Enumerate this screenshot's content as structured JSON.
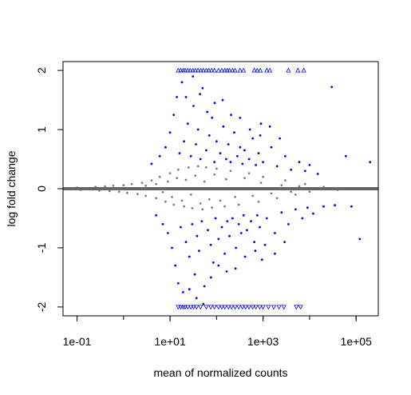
{
  "chart_data": {
    "type": "scatter",
    "title": "",
    "xlabel": "mean of normalized counts",
    "ylabel": "log fold change",
    "x_scale": "log10",
    "xlim": [
      0.05,
      300000
    ],
    "ylim": [
      -2.15,
      2.15
    ],
    "x_ticks": [
      0.1,
      10,
      1000,
      100000
    ],
    "x_tick_labels": [
      "1e-01",
      "1e+01",
      "1e+03",
      "1e+05"
    ],
    "y_ticks": [
      -2,
      -1,
      0,
      1,
      2
    ],
    "y_tick_labels": [
      "-2",
      "-1",
      "0",
      "1",
      "2"
    ],
    "grid": false,
    "legend": "none",
    "reference_line": {
      "y": 0,
      "color": "#666666"
    },
    "colors": {
      "significant": "#0000ff",
      "not_significant": "#808080",
      "reference_line": "#666666",
      "axis": "#000000"
    },
    "series": [
      {
        "marker": "dot",
        "color": "#808080",
        "points": [
          [
            0.06,
            0.01
          ],
          [
            0.08,
            -0.01
          ],
          [
            0.1,
            0.02
          ],
          [
            0.12,
            -0.02
          ],
          [
            0.15,
            0.01
          ],
          [
            0.2,
            -0.01
          ],
          [
            0.25,
            0.03
          ],
          [
            0.3,
            -0.03
          ],
          [
            0.4,
            0.04
          ],
          [
            0.5,
            -0.04
          ],
          [
            0.6,
            0.05
          ],
          [
            0.8,
            -0.05
          ],
          [
            1,
            0.06
          ],
          [
            1.2,
            -0.07
          ],
          [
            1.5,
            0.08
          ],
          [
            2,
            -0.09
          ],
          [
            2.5,
            0.1
          ],
          [
            3,
            -0.12
          ],
          [
            4,
            0.14
          ],
          [
            5,
            -0.16
          ],
          [
            6,
            0.2
          ],
          [
            8,
            -0.22
          ],
          [
            10,
            0.26
          ],
          [
            12,
            -0.27
          ],
          [
            15,
            0.32
          ],
          [
            20,
            -0.3
          ],
          [
            25,
            0.36
          ],
          [
            30,
            -0.33
          ],
          [
            40,
            0.38
          ],
          [
            50,
            -0.35
          ],
          [
            60,
            0.36
          ],
          [
            80,
            -0.32
          ],
          [
            100,
            0.34
          ],
          [
            150,
            -0.3
          ],
          [
            200,
            0.3
          ],
          [
            300,
            -0.27
          ],
          [
            500,
            0.26
          ],
          [
            800,
            -0.22
          ],
          [
            1000,
            0.2
          ],
          [
            2000,
            -0.16
          ],
          [
            3000,
            0.14
          ],
          [
            5000,
            -0.1
          ],
          [
            8000,
            0.08
          ],
          [
            10000,
            -0.05
          ],
          [
            20000,
            0.03
          ],
          [
            40000,
            -0.02
          ],
          [
            3,
            0.05
          ],
          [
            5,
            0.08
          ],
          [
            7,
            -0.06
          ],
          [
            9,
            0.12
          ],
          [
            11,
            -0.14
          ],
          [
            14,
            0.18
          ],
          [
            18,
            -0.2
          ],
          [
            22,
            0.15
          ],
          [
            28,
            -0.1
          ],
          [
            35,
            0.22
          ],
          [
            45,
            -0.25
          ],
          [
            55,
            0.12
          ],
          [
            70,
            -0.18
          ],
          [
            90,
            0.24
          ],
          [
            120,
            -0.2
          ],
          [
            160,
            0.16
          ],
          [
            250,
            -0.14
          ],
          [
            400,
            0.18
          ],
          [
            600,
            -0.12
          ],
          [
            900,
            0.1
          ],
          [
            1500,
            -0.08
          ],
          [
            2500,
            0.06
          ],
          [
            4000,
            -0.05
          ],
          [
            6000,
            0.04
          ]
        ]
      },
      {
        "marker": "dot",
        "color": "#0000ff",
        "points": [
          [
            4,
            0.42
          ],
          [
            5,
            -0.45
          ],
          [
            6,
            0.55
          ],
          [
            7,
            -0.6
          ],
          [
            8,
            0.7
          ],
          [
            9,
            -0.75
          ],
          [
            10,
            0.95
          ],
          [
            11,
            -1.0
          ],
          [
            12,
            1.25
          ],
          [
            13,
            -1.3
          ],
          [
            14,
            1.55
          ],
          [
            15,
            -1.6
          ],
          [
            16,
            0.6
          ],
          [
            17,
            -0.65
          ],
          [
            18,
            1.8
          ],
          [
            19,
            -1.75
          ],
          [
            20,
            0.8
          ],
          [
            22,
            -0.9
          ],
          [
            24,
            1.1
          ],
          [
            26,
            -1.15
          ],
          [
            28,
            0.55
          ],
          [
            30,
            -0.6
          ],
          [
            32,
            1.4
          ],
          [
            34,
            -1.45
          ],
          [
            36,
            0.75
          ],
          [
            38,
            -0.8
          ],
          [
            40,
            1.0
          ],
          [
            42,
            -1.05
          ],
          [
            45,
            0.5
          ],
          [
            48,
            -0.55
          ],
          [
            50,
            1.7
          ],
          [
            55,
            -1.65
          ],
          [
            60,
            0.65
          ],
          [
            65,
            -0.7
          ],
          [
            70,
            0.9
          ],
          [
            75,
            -0.95
          ],
          [
            80,
            1.2
          ],
          [
            85,
            -1.25
          ],
          [
            90,
            0.45
          ],
          [
            95,
            -0.5
          ],
          [
            100,
            0.8
          ],
          [
            110,
            -0.85
          ],
          [
            120,
            0.6
          ],
          [
            130,
            -0.65
          ],
          [
            140,
            1.05
          ],
          [
            150,
            -1.1
          ],
          [
            160,
            0.5
          ],
          [
            170,
            -0.55
          ],
          [
            180,
            0.75
          ],
          [
            190,
            -0.8
          ],
          [
            200,
            0.45
          ],
          [
            220,
            -0.5
          ],
          [
            240,
            0.95
          ],
          [
            260,
            -1.0
          ],
          [
            280,
            0.55
          ],
          [
            300,
            -0.6
          ],
          [
            320,
            0.7
          ],
          [
            340,
            -0.75
          ],
          [
            360,
            0.42
          ],
          [
            380,
            -0.45
          ],
          [
            400,
            0.65
          ],
          [
            450,
            -0.7
          ],
          [
            500,
            0.5
          ],
          [
            550,
            -0.55
          ],
          [
            600,
            0.85
          ],
          [
            650,
            -0.9
          ],
          [
            700,
            0.4
          ],
          [
            750,
            -0.45
          ],
          [
            800,
            0.6
          ],
          [
            850,
            -0.65
          ],
          [
            900,
            1.1
          ],
          [
            950,
            -1.2
          ],
          [
            1000,
            0.45
          ],
          [
            1200,
            -0.5
          ],
          [
            1500,
            0.7
          ],
          [
            1800,
            -0.75
          ],
          [
            2000,
            0.38
          ],
          [
            2500,
            -0.4
          ],
          [
            3000,
            0.55
          ],
          [
            3500,
            -0.6
          ],
          [
            4000,
            0.32
          ],
          [
            5000,
            -0.35
          ],
          [
            6000,
            0.45
          ],
          [
            7000,
            -0.5
          ],
          [
            8000,
            0.3
          ],
          [
            9000,
            -0.32
          ],
          [
            10000,
            0.4
          ],
          [
            12000,
            -0.42
          ],
          [
            15000,
            0.25
          ],
          [
            20000,
            -0.3
          ],
          [
            30000,
            1.72
          ],
          [
            35000,
            -0.28
          ],
          [
            60000,
            0.55
          ],
          [
            80000,
            -0.3
          ],
          [
            120000,
            -0.85
          ],
          [
            200000,
            0.45
          ],
          [
            22,
            1.55
          ],
          [
            26,
            -1.7
          ],
          [
            31,
            1.9
          ],
          [
            37,
            -1.85
          ],
          [
            44,
            1.6
          ],
          [
            52,
            -1.95
          ],
          [
            63,
            1.3
          ],
          [
            76,
            -1.5
          ],
          [
            91,
            1.45
          ],
          [
            110,
            -1.3
          ],
          [
            135,
            1.5
          ],
          [
            165,
            -1.4
          ],
          [
            205,
            1.25
          ],
          [
            255,
            -1.35
          ],
          [
            320,
            1.2
          ],
          [
            410,
            -1.15
          ],
          [
            520,
            1.0
          ],
          [
            680,
            -1.05
          ],
          [
            870,
            0.9
          ],
          [
            1100,
            -0.95
          ],
          [
            1400,
            1.05
          ],
          [
            1800,
            -1.1
          ],
          [
            2300,
            0.85
          ],
          [
            2900,
            -0.9
          ]
        ]
      },
      {
        "marker": "triangle-up",
        "color": "#0000ff",
        "points": [
          [
            15,
            2
          ],
          [
            17,
            2
          ],
          [
            19,
            2
          ],
          [
            21,
            2
          ],
          [
            24,
            2
          ],
          [
            27,
            2
          ],
          [
            31,
            2
          ],
          [
            35,
            2
          ],
          [
            40,
            2
          ],
          [
            46,
            2
          ],
          [
            52,
            2
          ],
          [
            60,
            2
          ],
          [
            68,
            2
          ],
          [
            78,
            2
          ],
          [
            90,
            2
          ],
          [
            110,
            2
          ],
          [
            130,
            2
          ],
          [
            150,
            2
          ],
          [
            170,
            2
          ],
          [
            190,
            2
          ],
          [
            220,
            2
          ],
          [
            250,
            2
          ],
          [
            320,
            2
          ],
          [
            380,
            2
          ],
          [
            650,
            2
          ],
          [
            750,
            2
          ],
          [
            870,
            2
          ],
          [
            1200,
            2
          ],
          [
            1400,
            2
          ],
          [
            3500,
            2
          ],
          [
            5600,
            2
          ],
          [
            7500,
            2
          ]
        ]
      },
      {
        "marker": "triangle-down",
        "color": "#0000ff",
        "points": [
          [
            15,
            -2
          ],
          [
            17,
            -2
          ],
          [
            19,
            -2
          ],
          [
            21,
            -2
          ],
          [
            24,
            -2
          ],
          [
            28,
            -2
          ],
          [
            32,
            -2
          ],
          [
            37,
            -2
          ],
          [
            45,
            -2
          ],
          [
            60,
            -2
          ],
          [
            75,
            -2
          ],
          [
            90,
            -2
          ],
          [
            110,
            -2
          ],
          [
            130,
            -2
          ],
          [
            150,
            -2
          ],
          [
            180,
            -2
          ],
          [
            210,
            -2
          ],
          [
            250,
            -2
          ],
          [
            300,
            -2
          ],
          [
            360,
            -2
          ],
          [
            420,
            -2
          ],
          [
            500,
            -2
          ],
          [
            600,
            -2
          ],
          [
            700,
            -2
          ],
          [
            850,
            -2
          ],
          [
            1000,
            -2
          ],
          [
            1300,
            -2
          ],
          [
            1700,
            -2
          ],
          [
            2200,
            -2
          ],
          [
            2800,
            -2
          ],
          [
            5200,
            -2
          ],
          [
            6400,
            -2
          ]
        ]
      }
    ]
  }
}
